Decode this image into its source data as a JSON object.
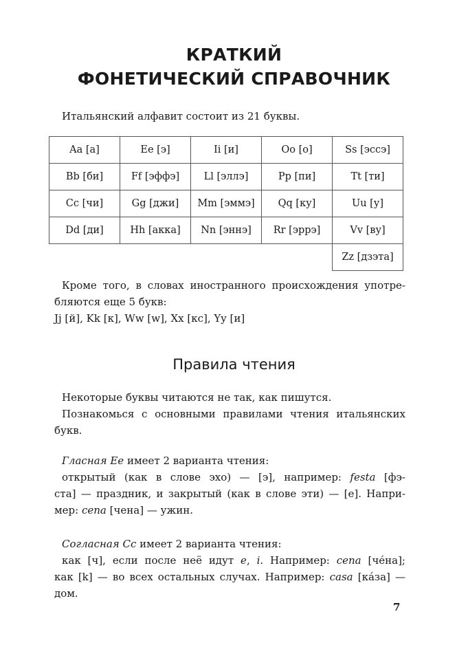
{
  "title": [
    "КРАТКИЙ",
    "ФОНЕТИЧЕСКИЙ СПРАВОЧНИК"
  ],
  "intro": "Итальянский алфавит состоит из 21 буквы.",
  "alphabet_rows": [
    [
      "Aa [а]",
      "Ee [э]",
      "Ii [и]",
      "Oo [о]",
      "Ss [эссэ]"
    ],
    [
      "Bb [би]",
      "Ff [эффэ]",
      "Ll [эллэ]",
      "Pp [пи]",
      "Tt [ти]"
    ],
    [
      "Cc [чи]",
      "Gg [джи]",
      "Mm [эммэ]",
      "Qq [ку]",
      "Uu [у]"
    ],
    [
      "Dd [ди]",
      "Hh [акка]",
      "Nn [эннэ]",
      "Rr [эррэ]",
      "Vv [ву]"
    ],
    [
      "",
      "",
      "",
      "",
      "Zz [дзэта]"
    ]
  ],
  "foreign": [
    "Кроме того, в словах иностранного происхождения употре-",
    "бляются еще 5 букв:",
    "Jj [й], Kk [к], Ww [w], Xx [кс], Yy [и]"
  ],
  "section_title": "Правила чтения",
  "rules_intro": [
    "Некоторые буквы читаются не так, как пишутся.",
    "Познакомься с основными правилами чтения итальянских",
    "букв."
  ],
  "vowel_e": {
    "label": "Гласная Ee",
    "head": " имеет 2 варианта чтения:",
    "l1a": "открытый (как в слове эхо) — [э], например: ",
    "l1i": "festa",
    "l1b": " [фэ-",
    "l2": "ста] — праздник, и закрытый (как в слове эти) — [е]. Напри-",
    "l3a": "мер: ",
    "l3i": "cena",
    "l3b": " [чена] — ужин."
  },
  "consonant_c": {
    "label": "Согласная Cc",
    "head": " имеет 2 варианта чтения:",
    "l1a": "как [ч], если после неё идут ",
    "l1i1": "e",
    "l1s": ", ",
    "l1i2": "i",
    "l1b": ". Например: ",
    "l1i3": "cena",
    "l1c": " [чéна];",
    "l2a": "как [k] — во всех остальных случах. Например: ",
    "l2i": "casa",
    "l2b": " [кáза] —",
    "l3": "дом."
  },
  "page_number": "7"
}
